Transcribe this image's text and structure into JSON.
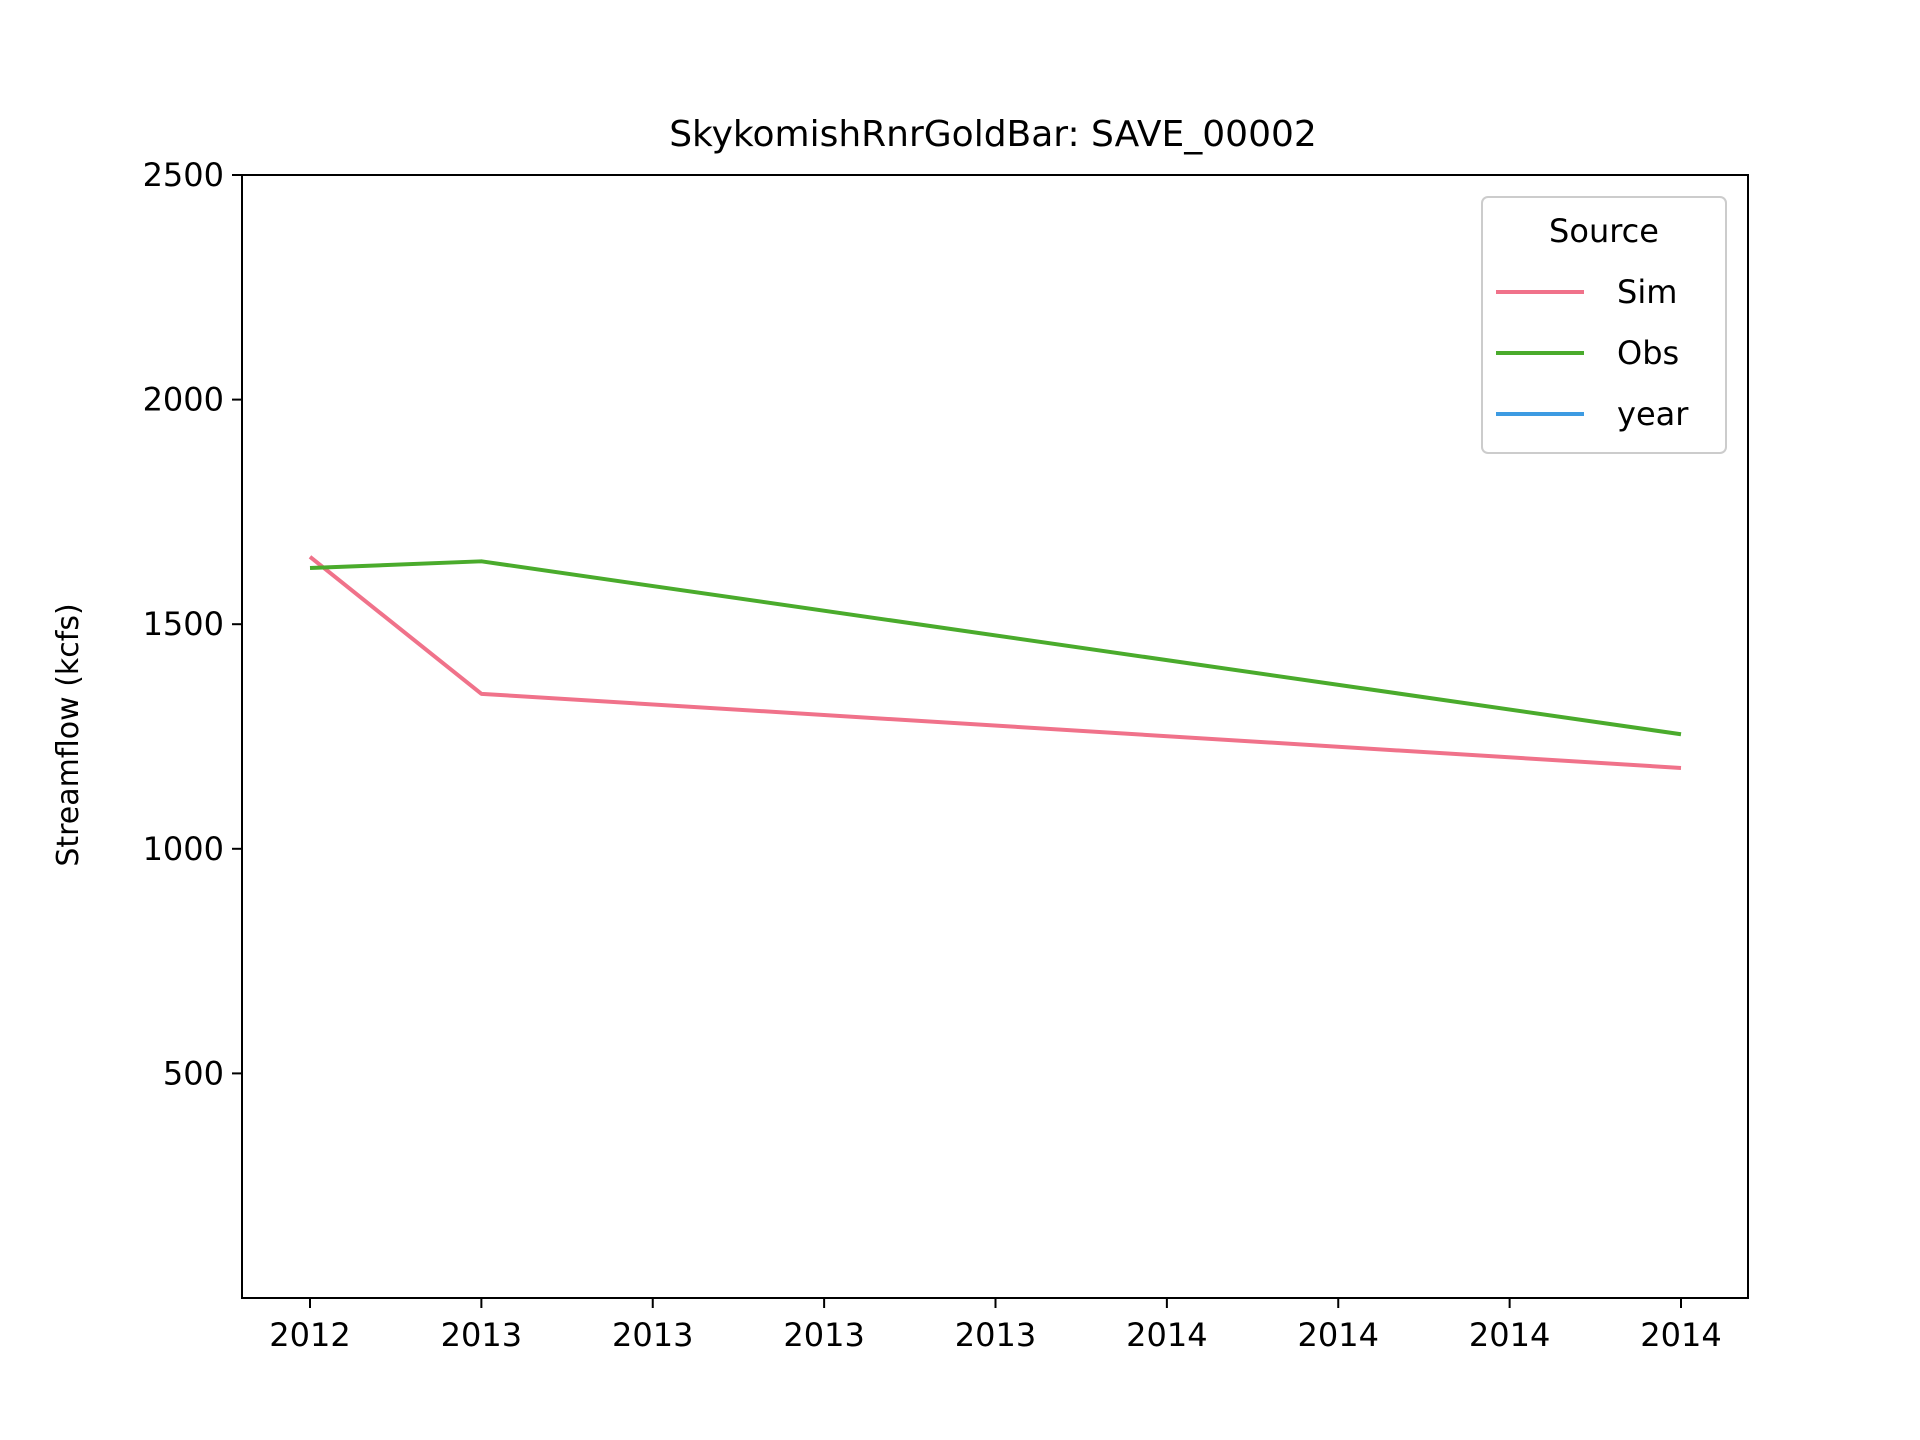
{
  "chart_data": {
    "type": "line",
    "title": "SkykomishRnrGoldBar: SAVE_00002",
    "xlabel": "",
    "ylabel": "Streamflow (kcfs)",
    "x_tick_labels": [
      "2012",
      "2013",
      "2013",
      "2013",
      "2013",
      "2014",
      "2014",
      "2014",
      "2014"
    ],
    "y_ticks": [
      500,
      1000,
      1500,
      2000,
      2500
    ],
    "ylim": [
      0,
      2500
    ],
    "grid": false,
    "legend": {
      "title": "Source",
      "placement": "top-right"
    },
    "series": [
      {
        "name": "Sim",
        "color": "#f0728a",
        "x": [
          "2012",
          "2013",
          "2014"
        ],
        "values": [
          1650,
          1345,
          1180
        ]
      },
      {
        "name": "Obs",
        "color": "#4aab2c",
        "x": [
          "2012",
          "2013",
          "2014"
        ],
        "values": [
          1625,
          1640,
          1255
        ]
      },
      {
        "name": "year",
        "color": "#3d9be2",
        "x": [],
        "values": []
      }
    ]
  }
}
